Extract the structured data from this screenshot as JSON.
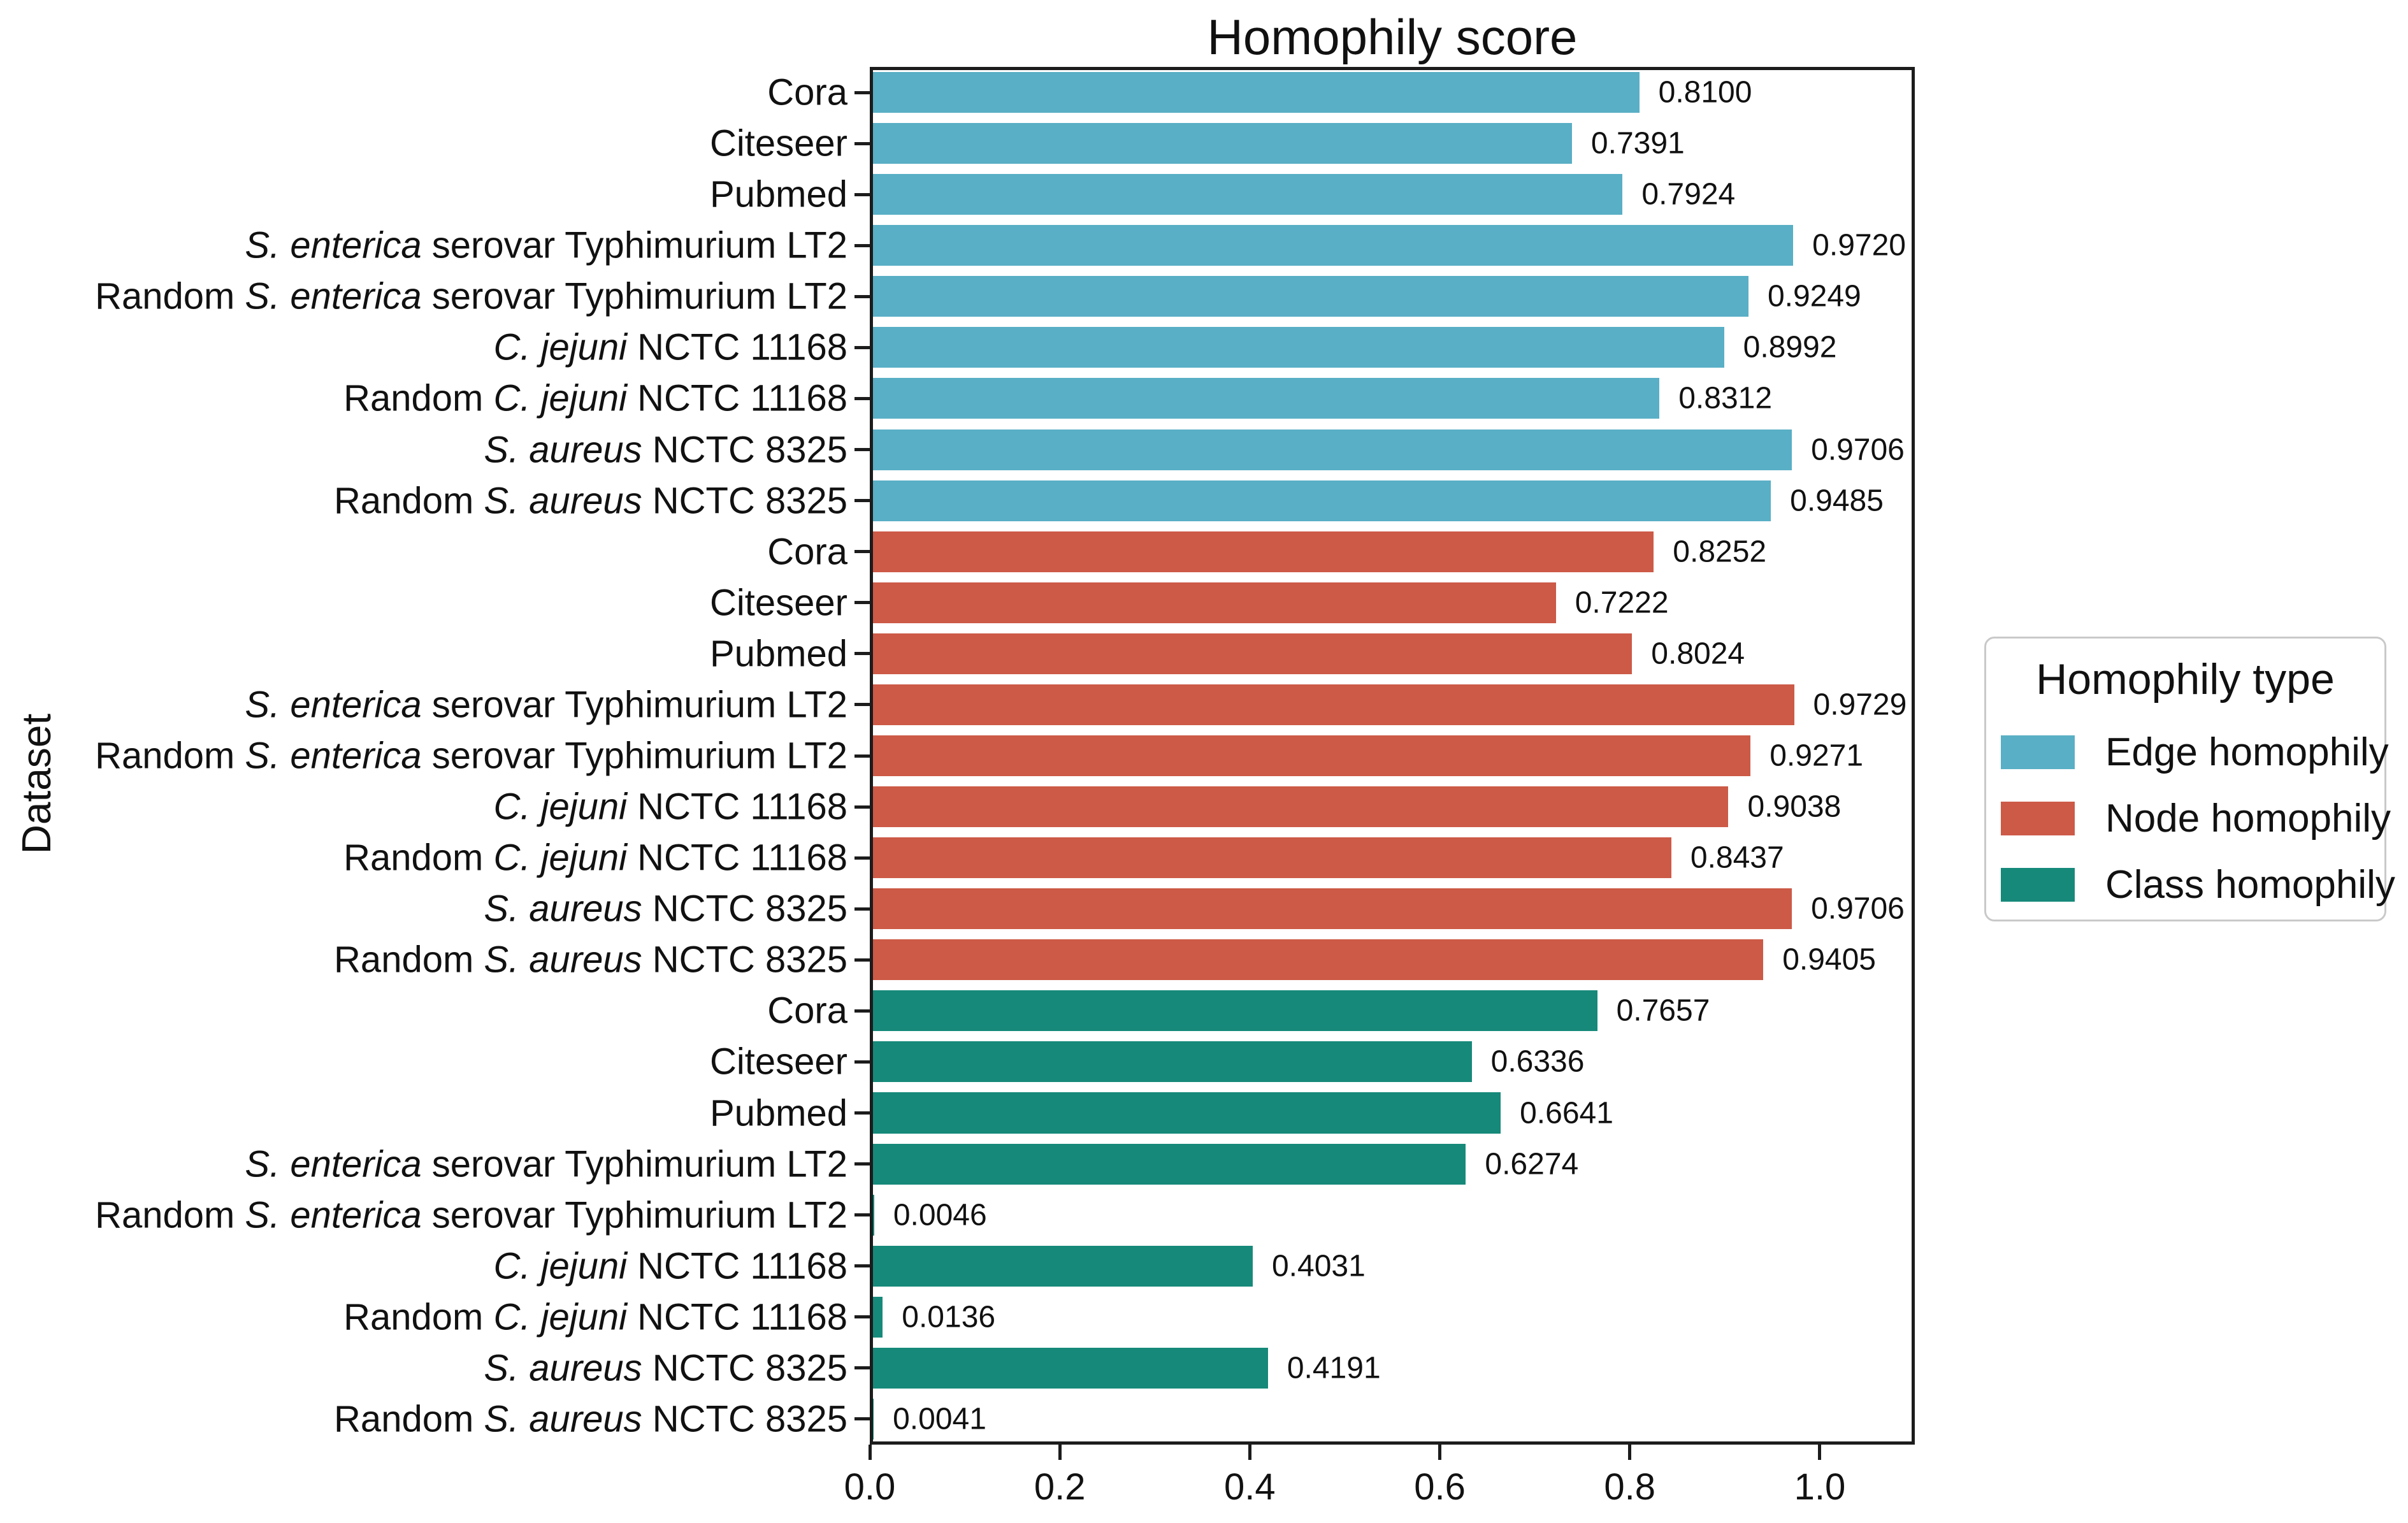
{
  "chart_data": {
    "type": "bar",
    "orientation": "horizontal",
    "title": "Homophily score",
    "xlabel": "",
    "ylabel": "Dataset",
    "xlim": [
      0,
      1.1
    ],
    "xticks": [
      0.0,
      0.2,
      0.4,
      0.6,
      0.8,
      1.0
    ],
    "grid": false,
    "bar_label_decimals": 4,
    "categories": [
      [
        {
          "text": "Cora",
          "italic": false
        }
      ],
      [
        {
          "text": "Citeseer",
          "italic": false
        }
      ],
      [
        {
          "text": "Pubmed",
          "italic": false
        }
      ],
      [
        {
          "text": "S. enterica",
          "italic": true
        },
        {
          "text": " serovar Typhimurium LT2",
          "italic": false
        }
      ],
      [
        {
          "text": "Random ",
          "italic": false
        },
        {
          "text": "S. enterica",
          "italic": true
        },
        {
          "text": " serovar Typhimurium LT2",
          "italic": false
        }
      ],
      [
        {
          "text": "C. jejuni",
          "italic": true
        },
        {
          "text": " NCTC 11168",
          "italic": false
        }
      ],
      [
        {
          "text": "Random ",
          "italic": false
        },
        {
          "text": "C. jejuni",
          "italic": true
        },
        {
          "text": " NCTC 11168",
          "italic": false
        }
      ],
      [
        {
          "text": "S. aureus",
          "italic": true
        },
        {
          "text": " NCTC 8325",
          "italic": false
        }
      ],
      [
        {
          "text": "Random ",
          "italic": false
        },
        {
          "text": "S. aureus",
          "italic": true
        },
        {
          "text": " NCTC 8325",
          "italic": false
        }
      ]
    ],
    "series": [
      {
        "name": "Edge homophily",
        "color": "#59AFC5",
        "values": [
          0.81,
          0.7391,
          0.7924,
          0.972,
          0.9249,
          0.8992,
          0.8312,
          0.9706,
          0.9485
        ]
      },
      {
        "name": "Node homophily",
        "color": "#CC5A47",
        "values": [
          0.8252,
          0.7222,
          0.8024,
          0.9729,
          0.9271,
          0.9038,
          0.8437,
          0.9706,
          0.9405
        ]
      },
      {
        "name": "Class homophily",
        "color": "#16897A",
        "values": [
          0.7657,
          0.6336,
          0.6641,
          0.6274,
          0.0046,
          0.4031,
          0.0136,
          0.4191,
          0.0041
        ]
      }
    ],
    "legend": {
      "title": "Homophily type",
      "position": "center right"
    }
  }
}
